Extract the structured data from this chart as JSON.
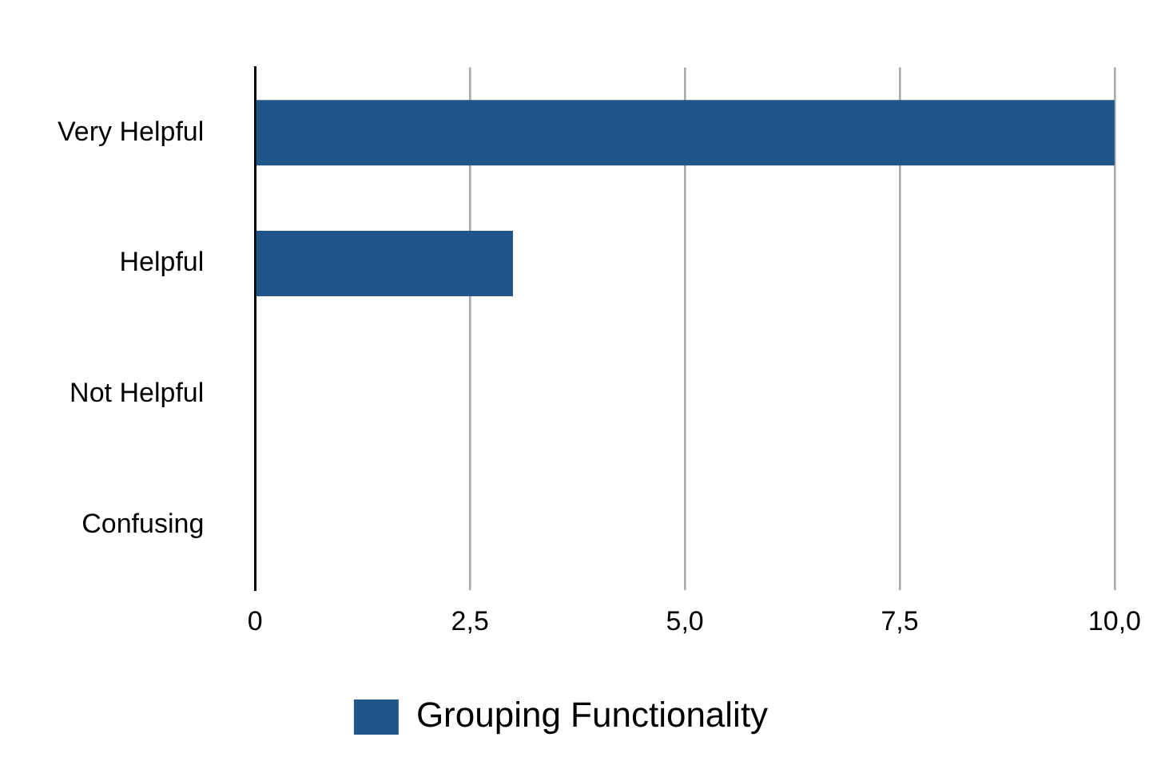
{
  "chart_data": {
    "type": "bar",
    "orientation": "horizontal",
    "categories": [
      "Very Helpful",
      "Helpful",
      "Not Helpful",
      "Confusing"
    ],
    "series": [
      {
        "name": "Grouping Functionality",
        "color": "#1f5589",
        "values": [
          10,
          3,
          0,
          0
        ]
      }
    ],
    "xlim": [
      0,
      10
    ],
    "xticks": [
      0,
      {
        "value": 2.5,
        "label": "2,5"
      },
      {
        "value": 5,
        "label": "5,0"
      },
      {
        "value": 7.5,
        "label": "7,5"
      },
      {
        "value": 10,
        "label": "10,0"
      }
    ],
    "grid": "x",
    "legend": "bottom"
  }
}
